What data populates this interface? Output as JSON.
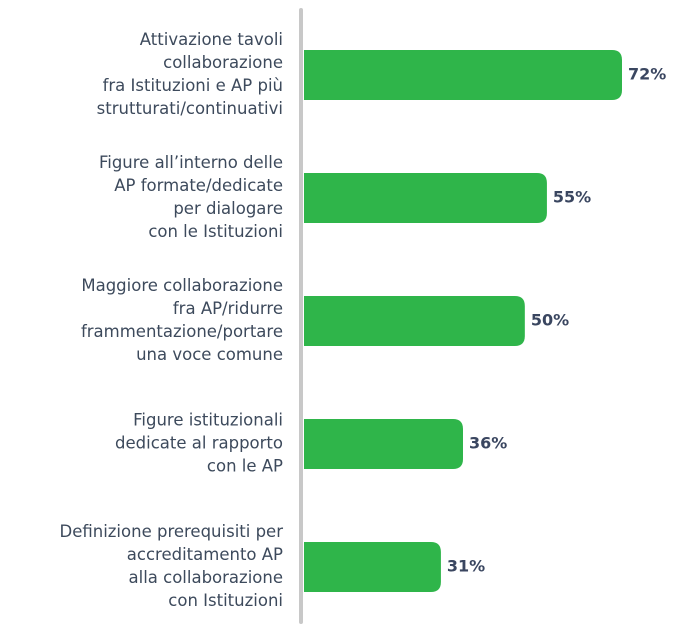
{
  "chart_data": {
    "type": "bar",
    "orientation": "horizontal",
    "color": "#2fb54a",
    "categories": [
      [
        "Attivazione tavoli",
        "collaborazione",
        "fra Istituzioni e AP più",
        "strutturati/continuativi"
      ],
      [
        "Figure all’interno delle",
        "AP formate/dedicate",
        "per dialogare",
        "con le Istituzioni"
      ],
      [
        "Maggiore collaborazione",
        "fra AP/ridurre",
        "frammentazione/portare",
        "una voce comune"
      ],
      [
        "Figure istituzionali",
        "dedicate al rapporto",
        "con le AP"
      ],
      [
        "Definizione prerequisiti per",
        "accreditamento AP",
        "alla collaborazione",
        "con Istituzioni"
      ]
    ],
    "values": [
      72,
      55,
      50,
      36,
      31
    ],
    "value_labels": [
      "72%",
      "55%",
      "50%",
      "36%",
      "31%"
    ]
  }
}
